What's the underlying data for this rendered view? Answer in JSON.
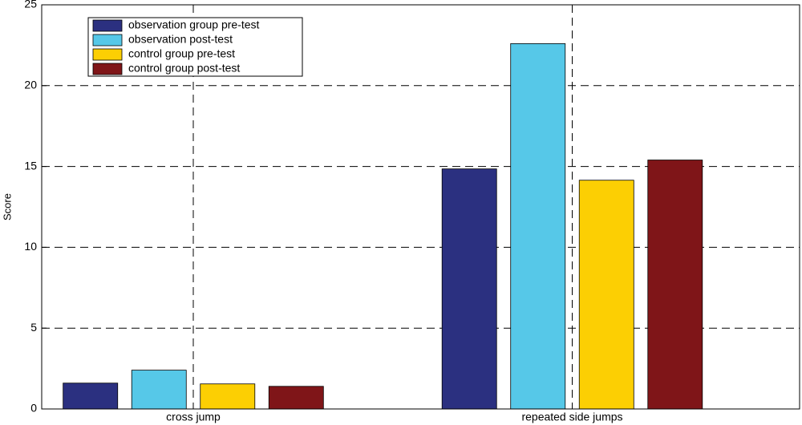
{
  "chart_data": {
    "type": "bar",
    "y_label": "Score",
    "categories": [
      "cross jump",
      "repeated side jumps"
    ],
    "series": [
      {
        "name": "observation group pre-test",
        "color": "#2b3080",
        "values": [
          1.6,
          14.85
        ]
      },
      {
        "name": "observation post-test",
        "color": "#56c8e8",
        "values": [
          2.4,
          22.6
        ]
      },
      {
        "name": "control group pre-test",
        "color": "#fccf03",
        "values": [
          1.55,
          14.15
        ]
      },
      {
        "name": "control group post-test",
        "color": "#7f1518",
        "values": [
          1.4,
          15.4
        ]
      }
    ],
    "ylim": [
      0,
      25
    ],
    "yticks": [
      0,
      5,
      10,
      15,
      20,
      25
    ],
    "grid": true,
    "legend": "upper left"
  }
}
